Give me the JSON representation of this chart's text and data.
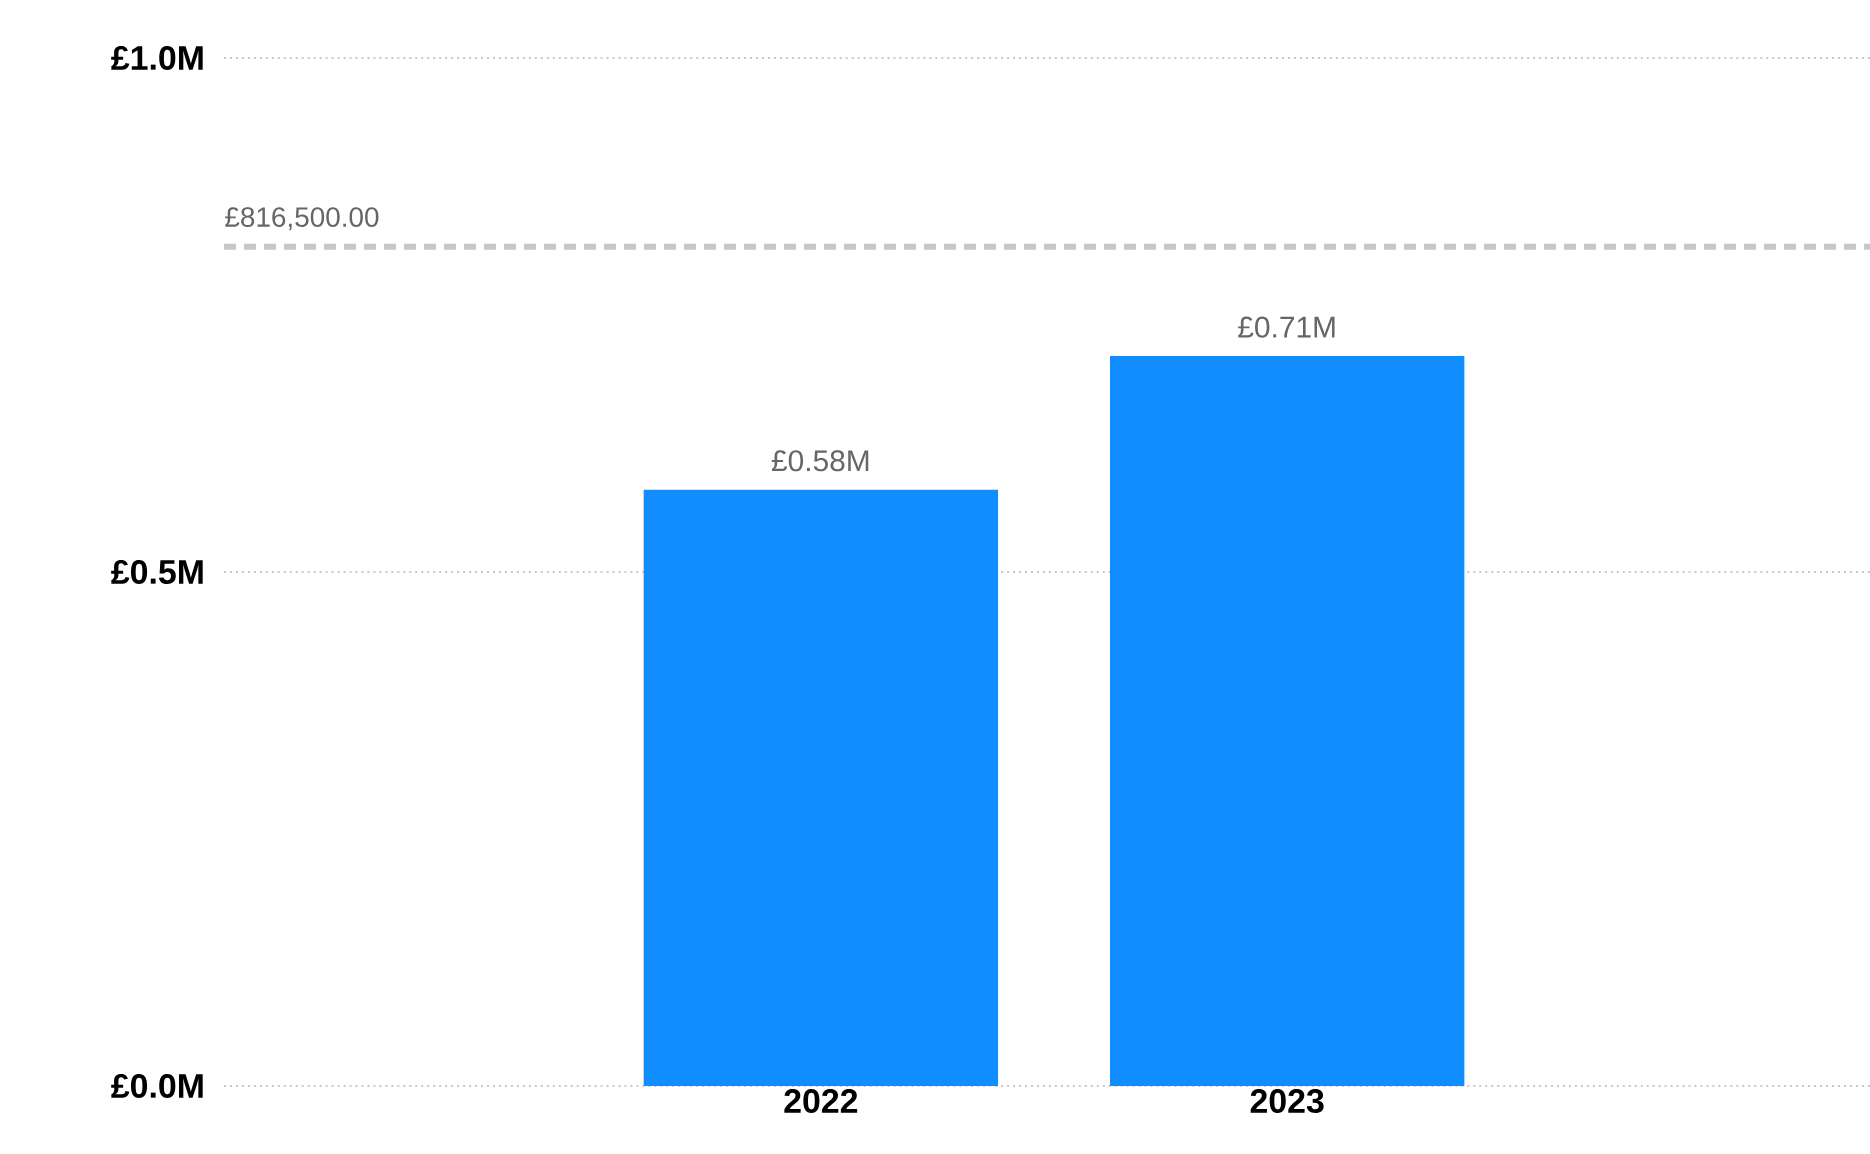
{
  "chart_data": {
    "type": "bar",
    "categories": [
      "2022",
      "2023"
    ],
    "values": [
      0.58,
      0.71
    ],
    "color": "#118dff",
    "value_labels": [
      "£0.58M",
      "£0.71M"
    ],
    "ylim": [
      0,
      1.0
    ],
    "yticks": [
      {
        "value": 0,
        "label": "£0.0M"
      },
      {
        "value": 0.5,
        "label": "£0.5M"
      },
      {
        "value": 1.0,
        "label": "£1.0M"
      }
    ],
    "grid": "y",
    "ref_lines": [
      {
        "axis": "y",
        "value": 0.8165,
        "label": "£816,500.00",
        "color": "#c8c8c8",
        "line_style": "dashed"
      }
    ]
  }
}
